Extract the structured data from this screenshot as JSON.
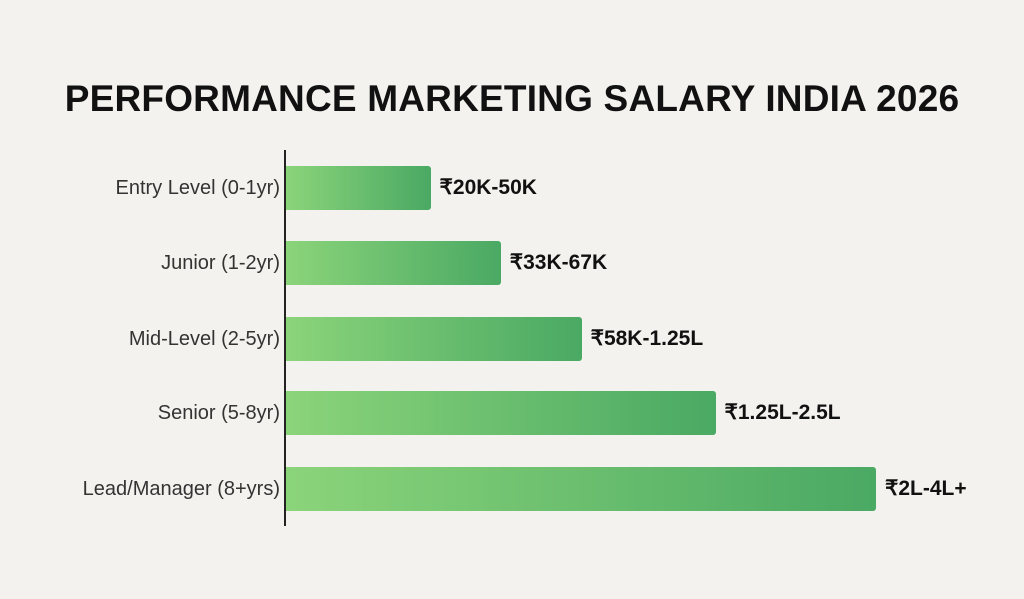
{
  "chart_data": {
    "type": "bar",
    "orientation": "horizontal",
    "title": "PERFORMANCE MARKETING SALARY INDIA 2026",
    "categories": [
      "Entry Level (0-1yr)",
      "Junior (1-2yr)",
      "Mid-Level (2-5yr)",
      "Senior (5-8yr)",
      "Lead/Manager (8+yrs)"
    ],
    "data_labels": [
      "₹20K-50K",
      "₹33K-67K",
      "₹58K-1.25L",
      "₹1.25L-2.5L",
      "₹2L-4L+"
    ],
    "relative_bar_length_pct": [
      24.5,
      36.4,
      50.1,
      72.8,
      100
    ],
    "grid": false,
    "colors": {
      "bar_start": "#8bd47a",
      "bar_end": "#4aa963",
      "background": "#f3f2ee"
    }
  }
}
